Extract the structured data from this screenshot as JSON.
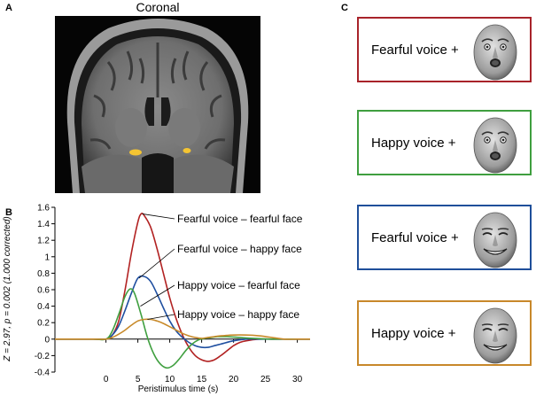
{
  "panels": {
    "a": "A",
    "b": "B",
    "c": "C"
  },
  "mri": {
    "title": "Coronal"
  },
  "chart_data": {
    "type": "line",
    "xlabel": "Peristimulus time (s)",
    "ylabel": "Z = 2.97, p = 0.002 (1.000 corrected)",
    "xlim": [
      -8,
      32
    ],
    "ylim": [
      -0.4,
      1.6
    ],
    "xticks": [
      0,
      5,
      10,
      15,
      20,
      25,
      30
    ],
    "yticks": [
      -0.4,
      -0.2,
      0,
      0.2,
      0.4,
      0.6,
      0.8,
      1.0,
      1.2,
      1.4,
      1.6
    ],
    "grid": false,
    "series": [
      {
        "name": "Fearful voice – fearful face",
        "color": "#b22222",
        "x": [
          -8,
          -2,
          0,
          1,
          2,
          3,
          4,
          5,
          5.5,
          6,
          7,
          8,
          9,
          10,
          11,
          12,
          13,
          14,
          15,
          16,
          17,
          18,
          19,
          20,
          21,
          22,
          24,
          26,
          28,
          30,
          32
        ],
        "y": [
          0,
          0,
          0,
          0.05,
          0.22,
          0.6,
          1.05,
          1.42,
          1.52,
          1.5,
          1.36,
          1.1,
          0.8,
          0.5,
          0.25,
          0.05,
          -0.1,
          -0.2,
          -0.25,
          -0.27,
          -0.25,
          -0.2,
          -0.14,
          -0.08,
          -0.04,
          -0.02,
          0,
          0,
          0,
          0,
          0
        ]
      },
      {
        "name": "Fearful voice – happy face",
        "color": "#1f4fa0",
        "x": [
          -8,
          -2,
          0,
          1,
          2,
          3,
          4,
          5,
          6,
          7,
          8,
          9,
          10,
          11,
          12,
          13,
          14,
          15,
          16,
          17,
          18,
          20,
          22,
          24,
          26,
          28,
          30,
          32
        ],
        "y": [
          0,
          0,
          0,
          0.05,
          0.16,
          0.35,
          0.56,
          0.74,
          0.76,
          0.7,
          0.55,
          0.38,
          0.22,
          0.1,
          0.02,
          -0.04,
          -0.08,
          -0.1,
          -0.1,
          -0.08,
          -0.06,
          -0.02,
          0,
          0,
          0,
          0,
          0,
          0
        ]
      },
      {
        "name": "Happy voice – fearful face",
        "color": "#3f9f3f",
        "x": [
          -8,
          -2,
          0,
          1,
          2,
          3,
          3.8,
          4.5,
          5.5,
          6.5,
          7.5,
          8.5,
          9.5,
          10.5,
          11.5,
          12.5,
          13.5,
          14.5,
          15.5,
          16.5,
          17.5,
          19,
          21,
          23,
          26,
          29,
          32
        ],
        "y": [
          0,
          0,
          0,
          0.1,
          0.3,
          0.52,
          0.61,
          0.55,
          0.3,
          0.02,
          -0.18,
          -0.3,
          -0.35,
          -0.32,
          -0.24,
          -0.14,
          -0.06,
          -0.01,
          0.01,
          0.02,
          0.03,
          0.03,
          0.02,
          0.01,
          0,
          0,
          0
        ]
      },
      {
        "name": "Happy voice – happy face",
        "color": "#c88a2a",
        "x": [
          -8,
          -2,
          0,
          1,
          2,
          3,
          4,
          5,
          6,
          7,
          8,
          9,
          10,
          11,
          12,
          13,
          14,
          15,
          16,
          17,
          18,
          20,
          22,
          24,
          26,
          28,
          30,
          32
        ],
        "y": [
          0,
          0,
          0,
          0.02,
          0.06,
          0.11,
          0.17,
          0.22,
          0.24,
          0.24,
          0.22,
          0.19,
          0.15,
          0.11,
          0.07,
          0.04,
          0.02,
          0.01,
          0.02,
          0.03,
          0.04,
          0.05,
          0.05,
          0.04,
          0.02,
          0,
          0,
          0
        ]
      }
    ],
    "annotations": [
      {
        "text": "Fearful voice – fearful face",
        "target_x": 5.7,
        "target_y": 1.52
      },
      {
        "text": "Fearful voice – happy face",
        "target_x": 5.2,
        "target_y": 0.74
      },
      {
        "text": "Happy voice – fearful face",
        "target_x": 5.4,
        "target_y": 0.4
      },
      {
        "text": "Happy voice – happy face",
        "target_x": 6.5,
        "target_y": 0.24
      }
    ]
  },
  "conditions": [
    {
      "label": "Fearful voice +",
      "color": "#a8232a",
      "face": "fearful-face"
    },
    {
      "label": "Happy voice +",
      "color": "#3f9f3f",
      "face": "fearful-face"
    },
    {
      "label": "Fearful voice +",
      "color": "#1f4f9a",
      "face": "happy-face"
    },
    {
      "label": "Happy voice +",
      "color": "#c8882a",
      "face": "happy-face"
    }
  ]
}
